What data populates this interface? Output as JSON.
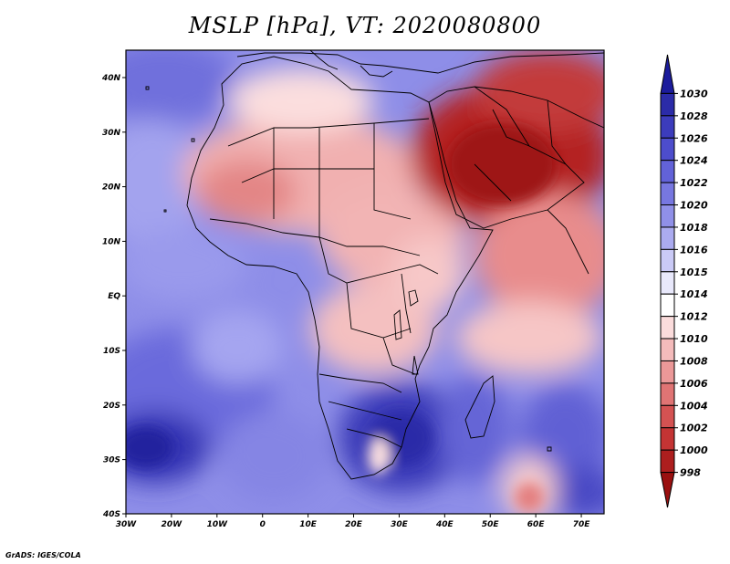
{
  "title": "MSLP [hPa], VT: 2020080800",
  "footer": "GrADS: IGES/COLA",
  "map": {
    "lon_labels": [
      "30W",
      "20W",
      "10W",
      "0",
      "10E",
      "20E",
      "30E",
      "40E",
      "50E",
      "60E",
      "70E"
    ],
    "lat_labels": [
      "40N",
      "30N",
      "20N",
      "10N",
      "EQ",
      "10S",
      "20S",
      "30S",
      "40S"
    ]
  },
  "colorbar": {
    "labels": [
      "1030",
      "1028",
      "1026",
      "1024",
      "1022",
      "1020",
      "1018",
      "1016",
      "1015",
      "1014",
      "1012",
      "1010",
      "1008",
      "1006",
      "1004",
      "1002",
      "1000",
      "998"
    ],
    "colors": [
      "#1c1c9c",
      "#2b2ba8",
      "#3c3cbc",
      "#4d4dcc",
      "#6262d8",
      "#7777e0",
      "#9090e8",
      "#ababf0",
      "#cacaf6",
      "#e8e8fb",
      "#ffffff",
      "#fbdcdc",
      "#f4bbbb",
      "#eb9898",
      "#e07474",
      "#d45252",
      "#c43434",
      "#ad1e1e",
      "#9a1010"
    ]
  }
}
